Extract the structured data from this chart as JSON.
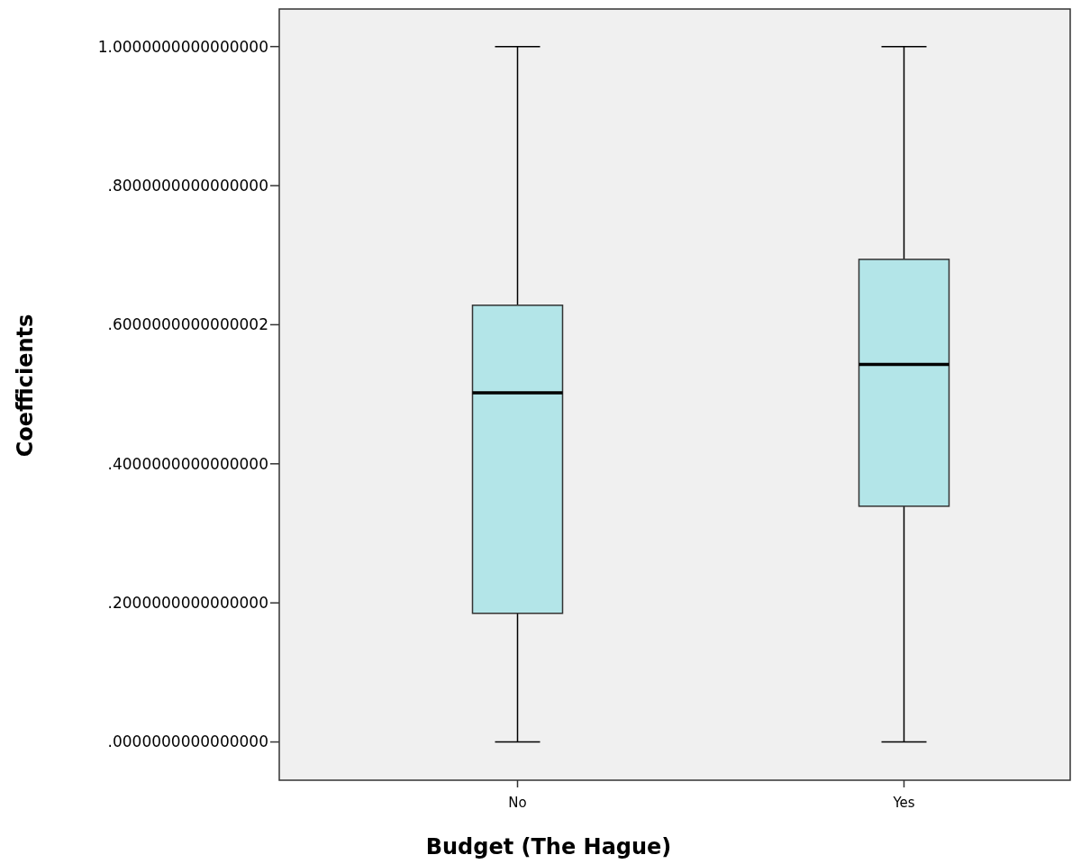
{
  "chart_data": {
    "type": "box",
    "xlabel": "Budget (The Hague)",
    "ylabel": "Coefficients",
    "categories": [
      "No",
      "Yes"
    ],
    "color": "#b3e5e8",
    "boxes": [
      {
        "low": 0,
        "q1": 0.185,
        "median": 0.502,
        "q3": 0.628,
        "high": 1
      },
      {
        "low": 0,
        "q1": 0.339,
        "median": 0.543,
        "q3": 0.694,
        "high": 1
      }
    ],
    "ylim": [
      -0.055,
      1.054
    ],
    "yticks": [
      {
        "value": 0,
        "label": ".0000000000000000"
      },
      {
        "value": 0.2,
        "label": ".2000000000000000"
      },
      {
        "value": 0.4,
        "label": ".4000000000000000"
      },
      {
        "value": 0.6,
        "label": ".6000000000000002"
      },
      {
        "value": 0.8,
        "label": ".8000000000000000"
      },
      {
        "value": 1,
        "label": "1.0000000000000000"
      }
    ]
  }
}
